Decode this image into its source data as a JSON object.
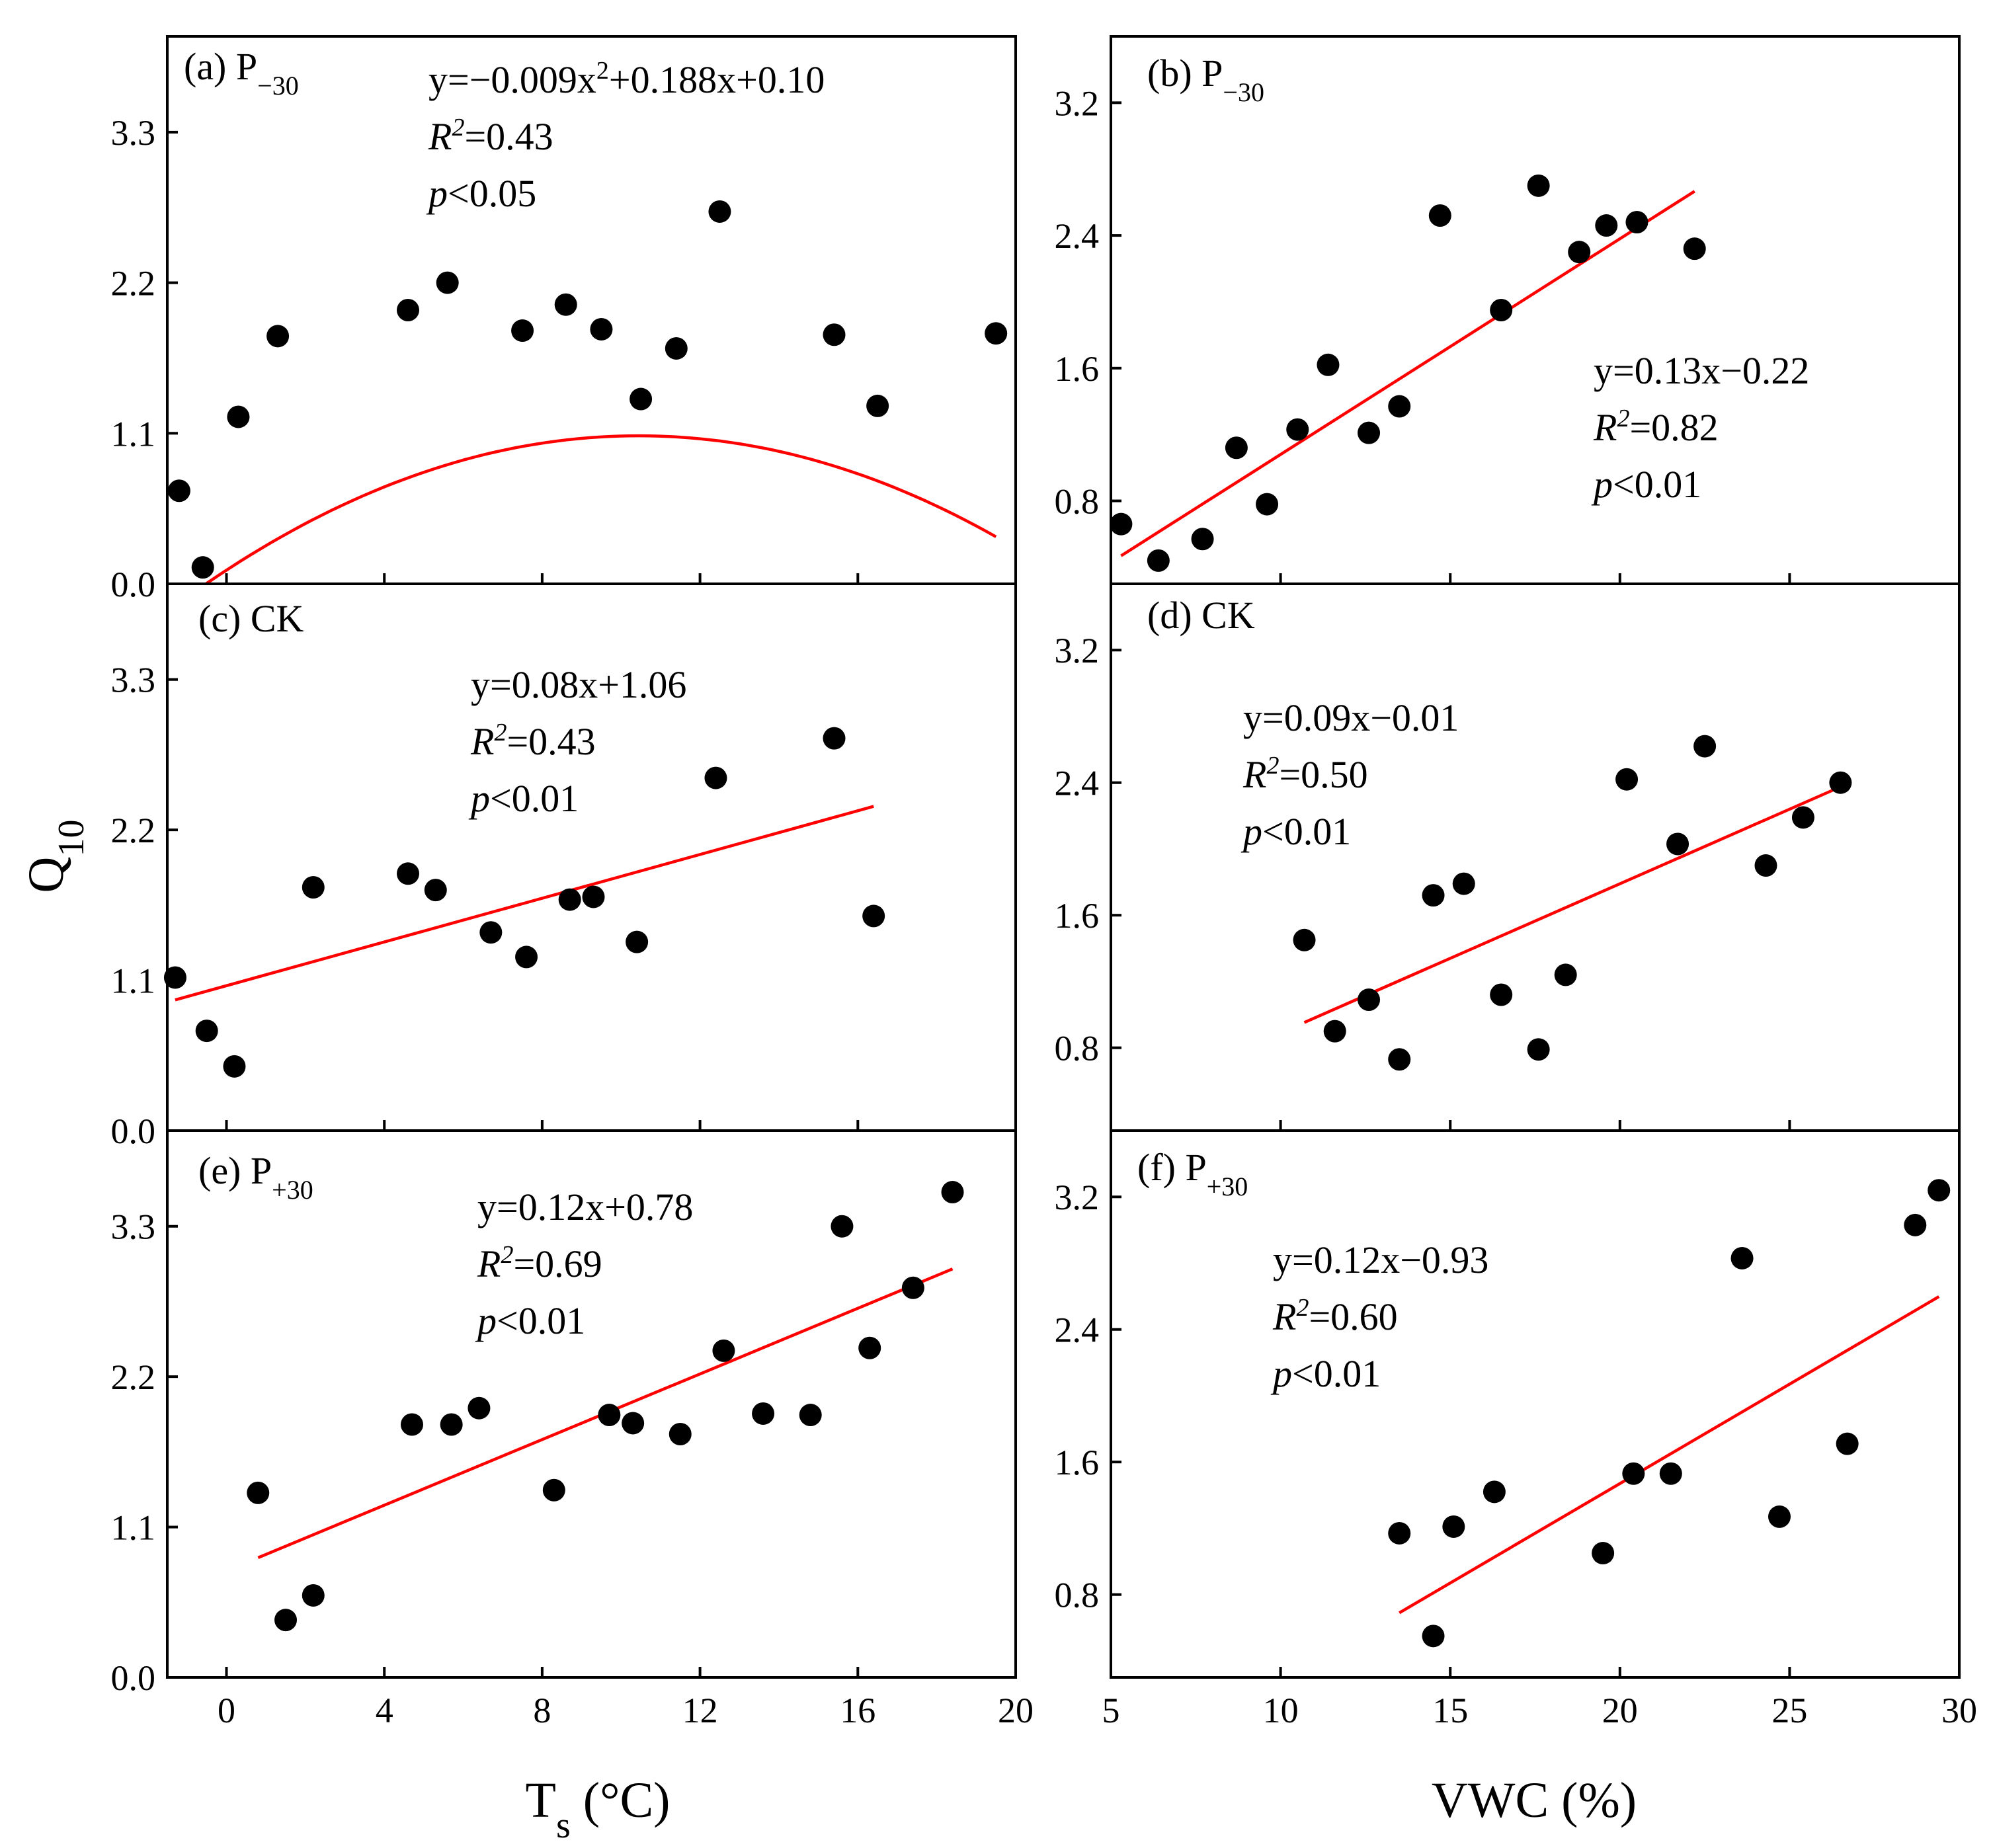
{
  "figure": {
    "y_axis_title": "Q",
    "y_axis_title_sub": "10",
    "x_axis_title_left": {
      "main": "T",
      "sub": "s",
      "unit": " (°C)"
    },
    "x_axis_title_right": "VWC (%)"
  },
  "chart_data": [
    {
      "id": "a",
      "type": "scatter",
      "label": "(a)",
      "treatment": "P",
      "treatment_sub": "−30",
      "xlim": [
        -1.5,
        20
      ],
      "ylim": [
        0,
        4.0
      ],
      "xticks": [
        0,
        4,
        8,
        12,
        16,
        20
      ],
      "yticks": [
        0.0,
        1.1,
        2.2,
        3.3
      ],
      "yticklabels": [
        "0.0",
        "1.1",
        "2.2",
        "3.3"
      ],
      "x": [
        -1.2,
        -0.6,
        0.3,
        1.3,
        4.6,
        5.6,
        7.5,
        8.6,
        9.5,
        10.5,
        11.4,
        12.5,
        15.4,
        16.5,
        19.5
      ],
      "y": [
        0.68,
        0.12,
        1.22,
        1.81,
        2.0,
        2.2,
        1.85,
        2.04,
        1.86,
        1.35,
        1.72,
        2.72,
        1.82,
        1.3,
        1.83
      ],
      "fit": {
        "kind": "quadratic",
        "coeffs": [
          -0.009,
          0.188,
          0.1
        ],
        "range": [
          -1.2,
          19.5
        ]
      },
      "equation": {
        "lines": [
          "y=−0.009x²+0.188x+0.10",
          "R²=0.43",
          "p<0.05"
        ]
      }
    },
    {
      "id": "b",
      "type": "scatter",
      "label": "(b)",
      "treatment": "P",
      "treatment_sub": "−30",
      "xlim": [
        5,
        30
      ],
      "ylim": [
        0.3,
        3.6
      ],
      "xticks": [
        5,
        10,
        15,
        20,
        25,
        30
      ],
      "yticks": [
        0.8,
        1.6,
        2.4,
        3.2
      ],
      "yticklabels": [
        "0.8",
        "1.6",
        "2.4",
        "3.2"
      ],
      "x": [
        5.3,
        6.4,
        7.7,
        8.7,
        9.6,
        10.5,
        11.4,
        12.6,
        13.5,
        14.7,
        16.5,
        17.6,
        18.8,
        19.6,
        20.5,
        22.2
      ],
      "y": [
        0.66,
        0.44,
        0.57,
        1.12,
        0.78,
        1.23,
        1.62,
        1.21,
        1.37,
        2.52,
        1.95,
        2.7,
        2.3,
        2.46,
        2.48,
        2.32
      ],
      "fit": {
        "kind": "linear",
        "coeffs": [
          0.13,
          -0.22
        ],
        "range": [
          5.3,
          22.2
        ]
      },
      "equation": {
        "lines": [
          "y=0.13x−0.22",
          "R²=0.82",
          "p<0.01"
        ]
      }
    },
    {
      "id": "c",
      "type": "scatter",
      "label": "(c)",
      "treatment": "CK",
      "treatment_sub": "",
      "xlim": [
        -1.5,
        20
      ],
      "ylim": [
        0,
        4.0
      ],
      "xticks": [
        0,
        4,
        8,
        12,
        16,
        20
      ],
      "yticks": [
        0.0,
        1.1,
        2.2,
        3.3
      ],
      "yticklabels": [
        "0.0",
        "1.1",
        "2.2",
        "3.3"
      ],
      "x": [
        -1.3,
        -0.5,
        0.2,
        2.2,
        4.6,
        5.3,
        6.7,
        7.6,
        8.7,
        9.3,
        10.4,
        12.4,
        15.4,
        16.4
      ],
      "y": [
        1.12,
        0.73,
        0.47,
        1.78,
        1.88,
        1.76,
        1.45,
        1.27,
        1.69,
        1.71,
        1.38,
        2.58,
        2.87,
        1.57
      ],
      "fit": {
        "kind": "linear",
        "coeffs": [
          0.08,
          1.06
        ],
        "range": [
          -1.3,
          16.4
        ]
      },
      "equation": {
        "lines": [
          "y=0.08x+1.06",
          "R²=0.43",
          "p<0.01"
        ]
      }
    },
    {
      "id": "d",
      "type": "scatter",
      "label": "(d)",
      "treatment": "CK",
      "treatment_sub": "",
      "xlim": [
        5,
        30
      ],
      "ylim": [
        0.3,
        3.6
      ],
      "xticks": [
        5,
        10,
        15,
        20,
        25,
        30
      ],
      "yticks": [
        0.8,
        1.6,
        2.4,
        3.2
      ],
      "yticklabels": [
        "0.8",
        "1.6",
        "2.4",
        "3.2"
      ],
      "x": [
        10.7,
        11.6,
        12.6,
        13.5,
        14.5,
        15.4,
        16.5,
        17.6,
        18.4,
        20.2,
        21.7,
        22.5,
        24.3,
        25.4,
        26.5
      ],
      "y": [
        1.45,
        0.9,
        1.09,
        0.73,
        1.72,
        1.79,
        1.12,
        0.79,
        1.24,
        2.42,
        2.03,
        2.62,
        1.9,
        2.19,
        2.4
      ],
      "fit": {
        "kind": "linear",
        "coeffs": [
          0.09,
          -0.01
        ],
        "range": [
          10.7,
          26.5
        ]
      },
      "equation": {
        "lines": [
          "y=0.09x−0.01",
          "R²=0.50",
          "p<0.01"
        ]
      }
    },
    {
      "id": "e",
      "type": "scatter",
      "label": "(e)",
      "treatment": "P",
      "treatment_sub": "+30",
      "xlim": [
        -1.5,
        20
      ],
      "ylim": [
        0,
        4.0
      ],
      "xticks": [
        0,
        4,
        8,
        12,
        16,
        20
      ],
      "yticks": [
        0.0,
        1.1,
        2.2,
        3.3
      ],
      "yticklabels": [
        "0.0",
        "1.1",
        "2.2",
        "3.3"
      ],
      "x": [
        0.8,
        1.5,
        2.2,
        4.7,
        5.7,
        6.4,
        8.3,
        9.7,
        10.3,
        11.5,
        12.6,
        13.6,
        14.8,
        15.6,
        16.3,
        17.4,
        18.4
      ],
      "y": [
        1.35,
        0.42,
        0.6,
        1.85,
        1.85,
        1.97,
        1.37,
        1.92,
        1.86,
        1.78,
        2.39,
        1.93,
        1.92,
        3.3,
        2.41,
        2.85,
        3.55
      ],
      "fit": {
        "kind": "linear",
        "coeffs": [
          0.12,
          0.78
        ],
        "range": [
          0.8,
          18.4
        ]
      },
      "equation": {
        "lines": [
          "y=0.12x+0.78",
          "R²=0.69",
          "p<0.01"
        ]
      }
    },
    {
      "id": "f",
      "type": "scatter",
      "label": "(f)",
      "treatment": "P",
      "treatment_sub": "+30",
      "xlim": [
        5,
        30
      ],
      "ylim": [
        0.3,
        3.6
      ],
      "xticks": [
        5,
        10,
        15,
        20,
        25,
        30
      ],
      "yticks": [
        0.8,
        1.6,
        2.4,
        3.2
      ],
      "yticklabels": [
        "0.8",
        "1.6",
        "2.4",
        "3.2"
      ],
      "x": [
        13.5,
        14.5,
        15.1,
        16.3,
        19.5,
        20.4,
        21.5,
        23.6,
        24.7,
        26.7,
        28.7,
        29.4
      ],
      "y": [
        1.17,
        0.55,
        1.21,
        1.42,
        1.05,
        1.53,
        1.53,
        2.83,
        1.27,
        1.71,
        3.03,
        3.24
      ],
      "fit": {
        "kind": "linear",
        "coeffs": [
          0.12,
          -0.93
        ],
        "range": [
          13.5,
          29.4
        ]
      },
      "equation": {
        "lines": [
          "y=0.12x−0.93",
          "R²=0.60",
          "p<0.01"
        ]
      }
    }
  ]
}
